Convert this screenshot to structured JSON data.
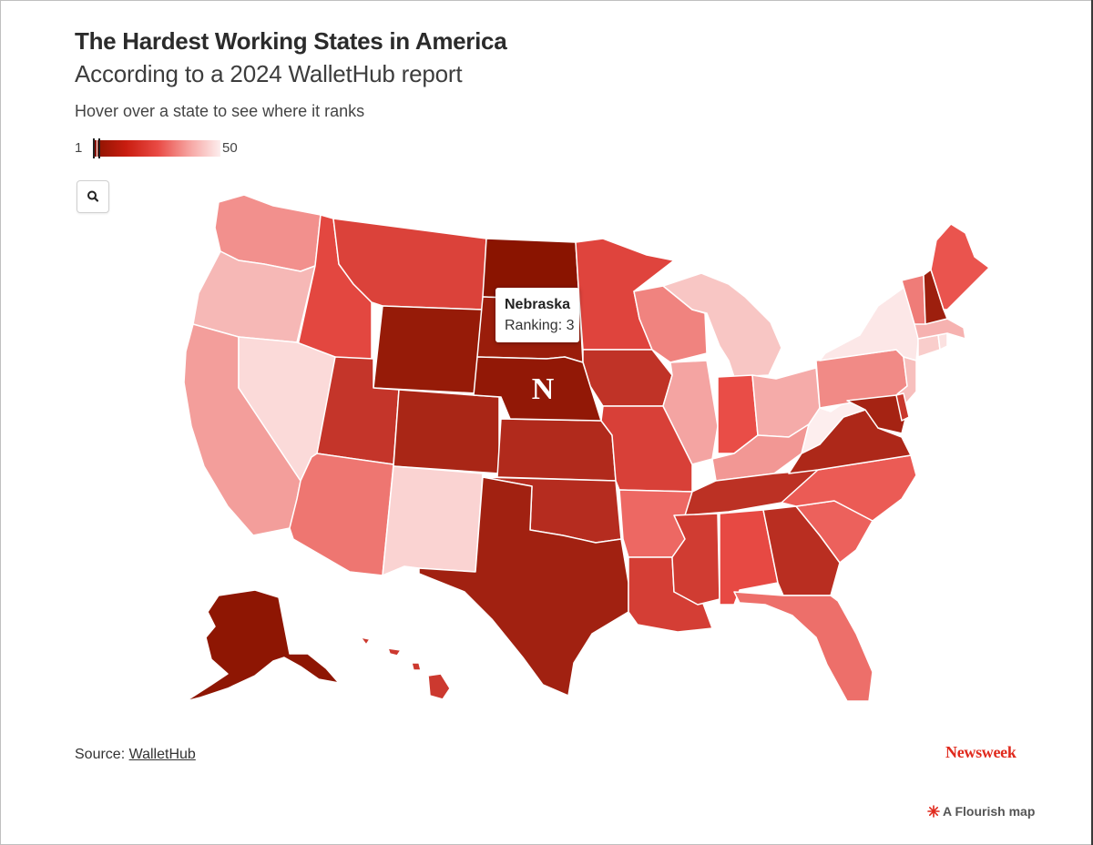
{
  "header": {
    "title": "The Hardest Working States in America",
    "subtitle": "According to a 2024 WalletHub report",
    "instruction": "Hover over a state to see where it ranks"
  },
  "legend": {
    "min_label": "1",
    "max_label": "50",
    "min": 1,
    "max": 50
  },
  "colors": {
    "rank_low": "#8a1400",
    "rank_mid": "#e94a44",
    "rank_high": "#fdeeee",
    "highlight_stroke": "#333333",
    "brand": "#e0291c"
  },
  "controls": {
    "search_icon": "search-icon"
  },
  "tooltip": {
    "state": "Nebraska",
    "ranking_text": "Ranking: 3"
  },
  "map_marker": {
    "text": "N"
  },
  "highlighted_state": "Nebraska",
  "states": [
    {
      "name": "North Dakota",
      "rank": 1
    },
    {
      "name": "Alaska",
      "rank": 2
    },
    {
      "name": "Nebraska",
      "rank": 3
    },
    {
      "name": "Wyoming",
      "rank": 4
    },
    {
      "name": "South Dakota",
      "rank": 5
    },
    {
      "name": "New Hampshire",
      "rank": 6
    },
    {
      "name": "Texas",
      "rank": 7
    },
    {
      "name": "Maryland",
      "rank": 8
    },
    {
      "name": "Colorado",
      "rank": 9
    },
    {
      "name": "Virginia",
      "rank": 10
    },
    {
      "name": "Kansas",
      "rank": 11
    },
    {
      "name": "Oklahoma",
      "rank": 12
    },
    {
      "name": "Georgia",
      "rank": 13
    },
    {
      "name": "Tennessee",
      "rank": 14
    },
    {
      "name": "Iowa",
      "rank": 15
    },
    {
      "name": "Utah",
      "rank": 16
    },
    {
      "name": "Delaware",
      "rank": 17
    },
    {
      "name": "Hawaii",
      "rank": 18
    },
    {
      "name": "Mississippi",
      "rank": 19
    },
    {
      "name": "Louisiana",
      "rank": 20
    },
    {
      "name": "Missouri",
      "rank": 21
    },
    {
      "name": "Montana",
      "rank": 22
    },
    {
      "name": "Minnesota",
      "rank": 23
    },
    {
      "name": "Idaho",
      "rank": 24
    },
    {
      "name": "Alabama",
      "rank": 25
    },
    {
      "name": "Indiana",
      "rank": 26
    },
    {
      "name": "Maine",
      "rank": 27
    },
    {
      "name": "North Carolina",
      "rank": 28
    },
    {
      "name": "South Carolina",
      "rank": 29
    },
    {
      "name": "Arkansas",
      "rank": 30
    },
    {
      "name": "Florida",
      "rank": 31
    },
    {
      "name": "Arizona",
      "rank": 32
    },
    {
      "name": "Vermont",
      "rank": 33
    },
    {
      "name": "Wisconsin",
      "rank": 34
    },
    {
      "name": "Pennsylvania",
      "rank": 35
    },
    {
      "name": "Washington",
      "rank": 36
    },
    {
      "name": "Kentucky",
      "rank": 37
    },
    {
      "name": "California",
      "rank": 38
    },
    {
      "name": "Illinois",
      "rank": 39
    },
    {
      "name": "Ohio",
      "rank": 40
    },
    {
      "name": "Massachusetts",
      "rank": 41
    },
    {
      "name": "Oregon",
      "rank": 42
    },
    {
      "name": "New Jersey",
      "rank": 43
    },
    {
      "name": "Michigan",
      "rank": 44
    },
    {
      "name": "Connecticut",
      "rank": 45
    },
    {
      "name": "New Mexico",
      "rank": 46
    },
    {
      "name": "Nevada",
      "rank": 47
    },
    {
      "name": "Rhode Island",
      "rank": 48
    },
    {
      "name": "New York",
      "rank": 49
    },
    {
      "name": "West Virginia",
      "rank": 50
    }
  ],
  "footer": {
    "source_label": "Source: ",
    "source_link": "WalletHub",
    "brand": "Newsweek",
    "flourish_credit": "A Flourish map"
  }
}
